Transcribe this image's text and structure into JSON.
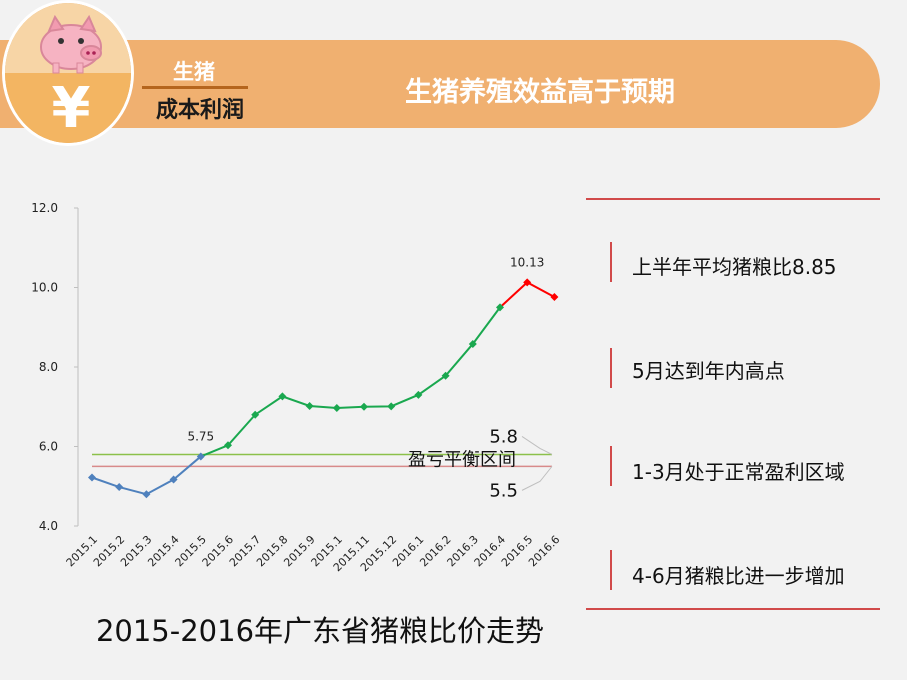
{
  "header": {
    "tag_top": "生猪",
    "tag_bottom": "成本利润",
    "title": "生猪养殖效益高于预期",
    "logo_symbol": "¥",
    "logo_icon": "pig-icon"
  },
  "side_points": [
    "上半年平均猪粮比8.85",
    "5月达到年内高点",
    "1-3月处于正常盈利区域",
    "4-6月猪粮比进一步增加"
  ],
  "caption": "2015-2016年广东省猪粮比价走势",
  "colors": {
    "banner": "#f0b070",
    "blue": "#4f81bd",
    "green": "#1aa84f",
    "red": "#ff0000",
    "accent": "#d14a4a"
  },
  "chart_data": {
    "type": "line",
    "categories": [
      "2015.1",
      "2015.2",
      "2015.3",
      "2015.4",
      "2015.5",
      "2015.6",
      "2015.7",
      "2015.8",
      "2015.9",
      "2015.1",
      "2015.11",
      "2015.12",
      "2016.1",
      "2016.2",
      "2016.3",
      "2016.4",
      "2016.5",
      "2016.6"
    ],
    "values": [
      5.22,
      4.98,
      4.8,
      5.17,
      5.75,
      6.03,
      6.8,
      7.26,
      7.02,
      6.97,
      7.0,
      7.01,
      7.3,
      7.78,
      8.58,
      9.5,
      10.13,
      9.76
    ],
    "segments": [
      {
        "from": 0,
        "to": 4,
        "color": "#4f81bd"
      },
      {
        "from": 4,
        "to": 15,
        "color": "#1aa84f"
      },
      {
        "from": 15,
        "to": 17,
        "color": "#ff0000"
      }
    ],
    "ylim": [
      4.0,
      12.0
    ],
    "yticks": [
      "12.0",
      "10.0",
      "8.0",
      "6.0",
      "4.0"
    ],
    "data_labels": [
      {
        "index": 4,
        "text": "5.75"
      },
      {
        "index": 16,
        "text": "10.13"
      }
    ],
    "reference_lines": [
      {
        "value": 5.8,
        "label": "5.8",
        "color": "#8cc04a"
      },
      {
        "value": 5.5,
        "label": "5.5",
        "color": "#d88a8a"
      }
    ],
    "band_label": "盈亏平衡区间"
  }
}
